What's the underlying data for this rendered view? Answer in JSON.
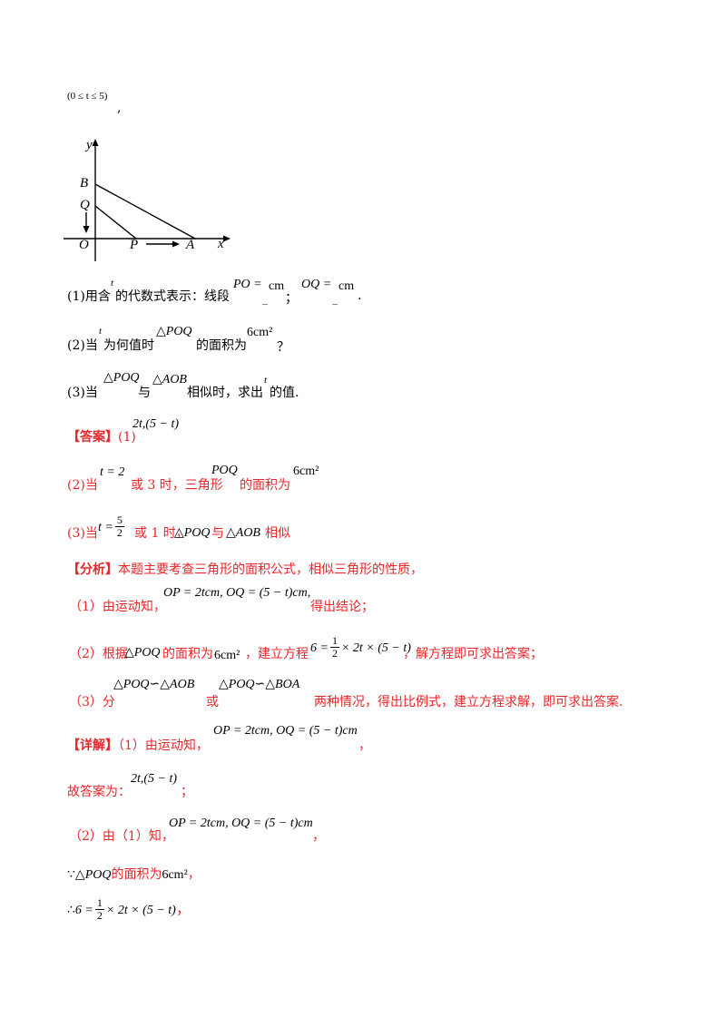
{
  "top_constraint": "(0 ≤ t ≤ 5)",
  "top_comma": ",",
  "figure": {
    "axis_y": "y",
    "axis_x": "x",
    "label_B": "B",
    "label_Q": "Q",
    "label_O": "O",
    "label_P": "P",
    "label_A": "A"
  },
  "q1": {
    "prefix": "(1)用含",
    "var": "t",
    "mid": "的代数式表示：线段",
    "po": "PO =",
    "cm1": "cm",
    "sep": "；",
    "oq": "OQ =",
    "cm2": "cm",
    "end": ".",
    "blank": "_"
  },
  "q2": {
    "prefix": "(2)当",
    "var": "t",
    "mid": "为何值时",
    "tri": "△POQ",
    "area": "的面积为",
    "val": "6cm²",
    "end": "？"
  },
  "q3": {
    "prefix": "(3)当",
    "tri1": "△POQ",
    "with": "与",
    "tri2": "△AOB",
    "mid": "相似时，求出",
    "var": "t",
    "end": "的值."
  },
  "answer": {
    "label": "【答案】",
    "a1_prefix": "(1)",
    "a1": "2t,(5 − t)",
    "a2_prefix": "(2)当",
    "a2_eq": "t = 2",
    "a2_mid": "或 3 时，三角形",
    "a2_tri": "POQ",
    "a2_area": "的面积为",
    "a2_val": "6cm²",
    "a3_prefix": "(3)当",
    "a3_t": "t =",
    "a3_num": "5",
    "a3_den": "2",
    "a3_mid": "或 1 时，",
    "a3_tri1": "△POQ",
    "a3_with": "与",
    "a3_tri2": "△AOB",
    "a3_end": "相似"
  },
  "analysis": {
    "label": "【分析】",
    "intro": "本题主要考查三角形的面积公式，相似三角形的性质，",
    "s1_prefix": "（1）由运动知，",
    "s1_eq": "OP = 2tcm, OQ = (5 − t)cm,",
    "s1_end": "得出结论；",
    "s2_prefix": "（2）根据",
    "s2_tri": "△POQ",
    "s2_mid": "的面积为",
    "s2_val": "6cm²",
    "s2_mid2": "，建立方程",
    "s2_eq_a": "6 =",
    "s2_eq_num": "1",
    "s2_eq_den": "2",
    "s2_eq_b": "× 2t × (5 − t)",
    "s2_end": "，解方程即可求出答案；",
    "s3_prefix": "（3）分",
    "s3_c1": "△POQ∽△AOB",
    "s3_or": "或",
    "s3_c2": "△POQ∽△BOA",
    "s3_end": "两种情况，得出比例式，建立方程求解，即可求出答案."
  },
  "detail": {
    "label": "【详解】",
    "d1_prefix": "（1）由运动知，",
    "d1_eq": "OP = 2tcm, OQ = (5 − t)cm",
    "d1_end": "，",
    "d1_ans_prefix": "故答案为：",
    "d1_ans": "2t,(5 − t)",
    "d1_ans_end": "；",
    "d2_prefix": "（2）由（1）知，",
    "d2_eq": "OP = 2tcm, OQ = (5 − t)cm",
    "d2_end": "，",
    "d2_because": "∵",
    "d2_tri": "△POQ",
    "d2_area": "的面积为",
    "d2_val": "6cm²",
    "d2_comma": "，",
    "d2_therefore": "∴",
    "d2_eq_a": "6 =",
    "d2_num": "1",
    "d2_den": "2",
    "d2_eq_b": "× 2t × (5 − t)",
    "d2_eq_end": "，"
  },
  "colors": {
    "red": "#e8262a",
    "black": "#000000"
  }
}
